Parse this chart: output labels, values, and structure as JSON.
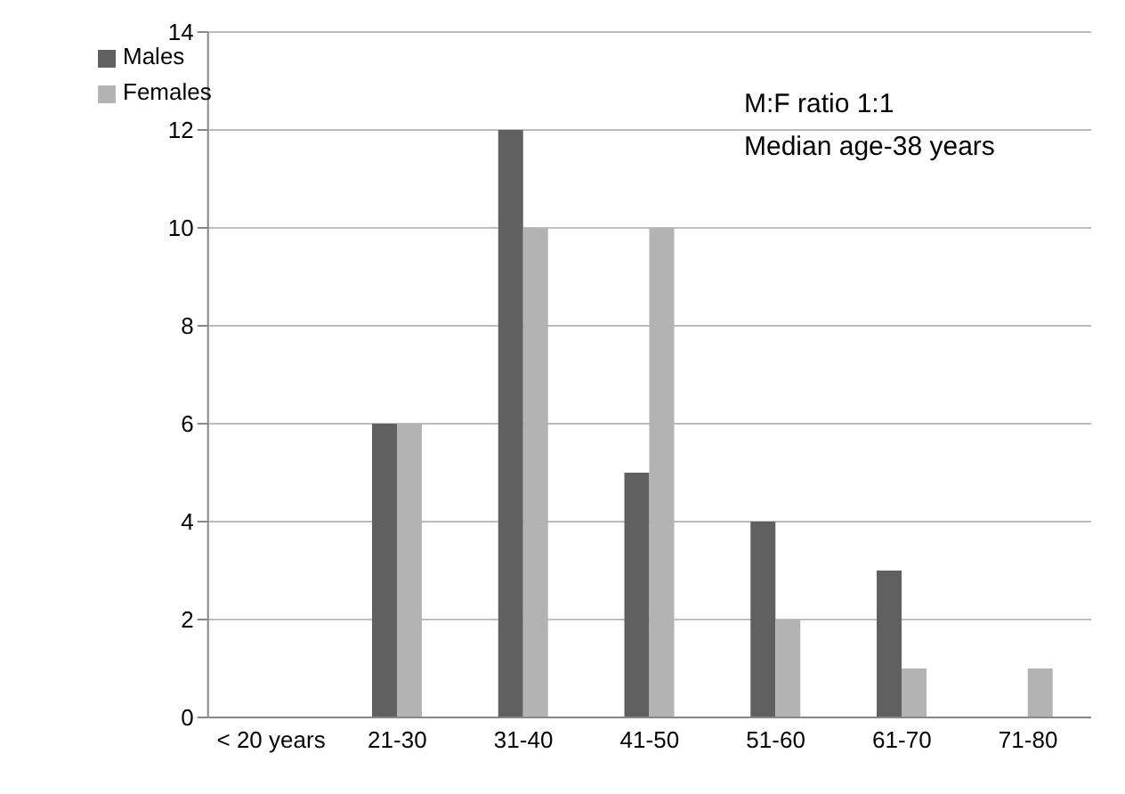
{
  "chart_data": {
    "type": "bar",
    "categories": [
      "< 20 years",
      "21-30",
      "31-40",
      "41-50",
      "51-60",
      "61-70",
      "71-80"
    ],
    "series": [
      {
        "name": "Males",
        "color": "#606060",
        "values": [
          0,
          6,
          12,
          5,
          4,
          3,
          0
        ]
      },
      {
        "name": "Females",
        "color": "#b3b3b3",
        "values": [
          0,
          6,
          10,
          10,
          2,
          1,
          1
        ]
      }
    ],
    "ylim": [
      0,
      14
    ],
    "yticks": [
      0,
      2,
      4,
      6,
      8,
      10,
      12,
      14
    ],
    "grid": "y",
    "legend": "top left",
    "annotations": [
      "M:F ratio 1:1",
      "Median age-38 years"
    ]
  }
}
